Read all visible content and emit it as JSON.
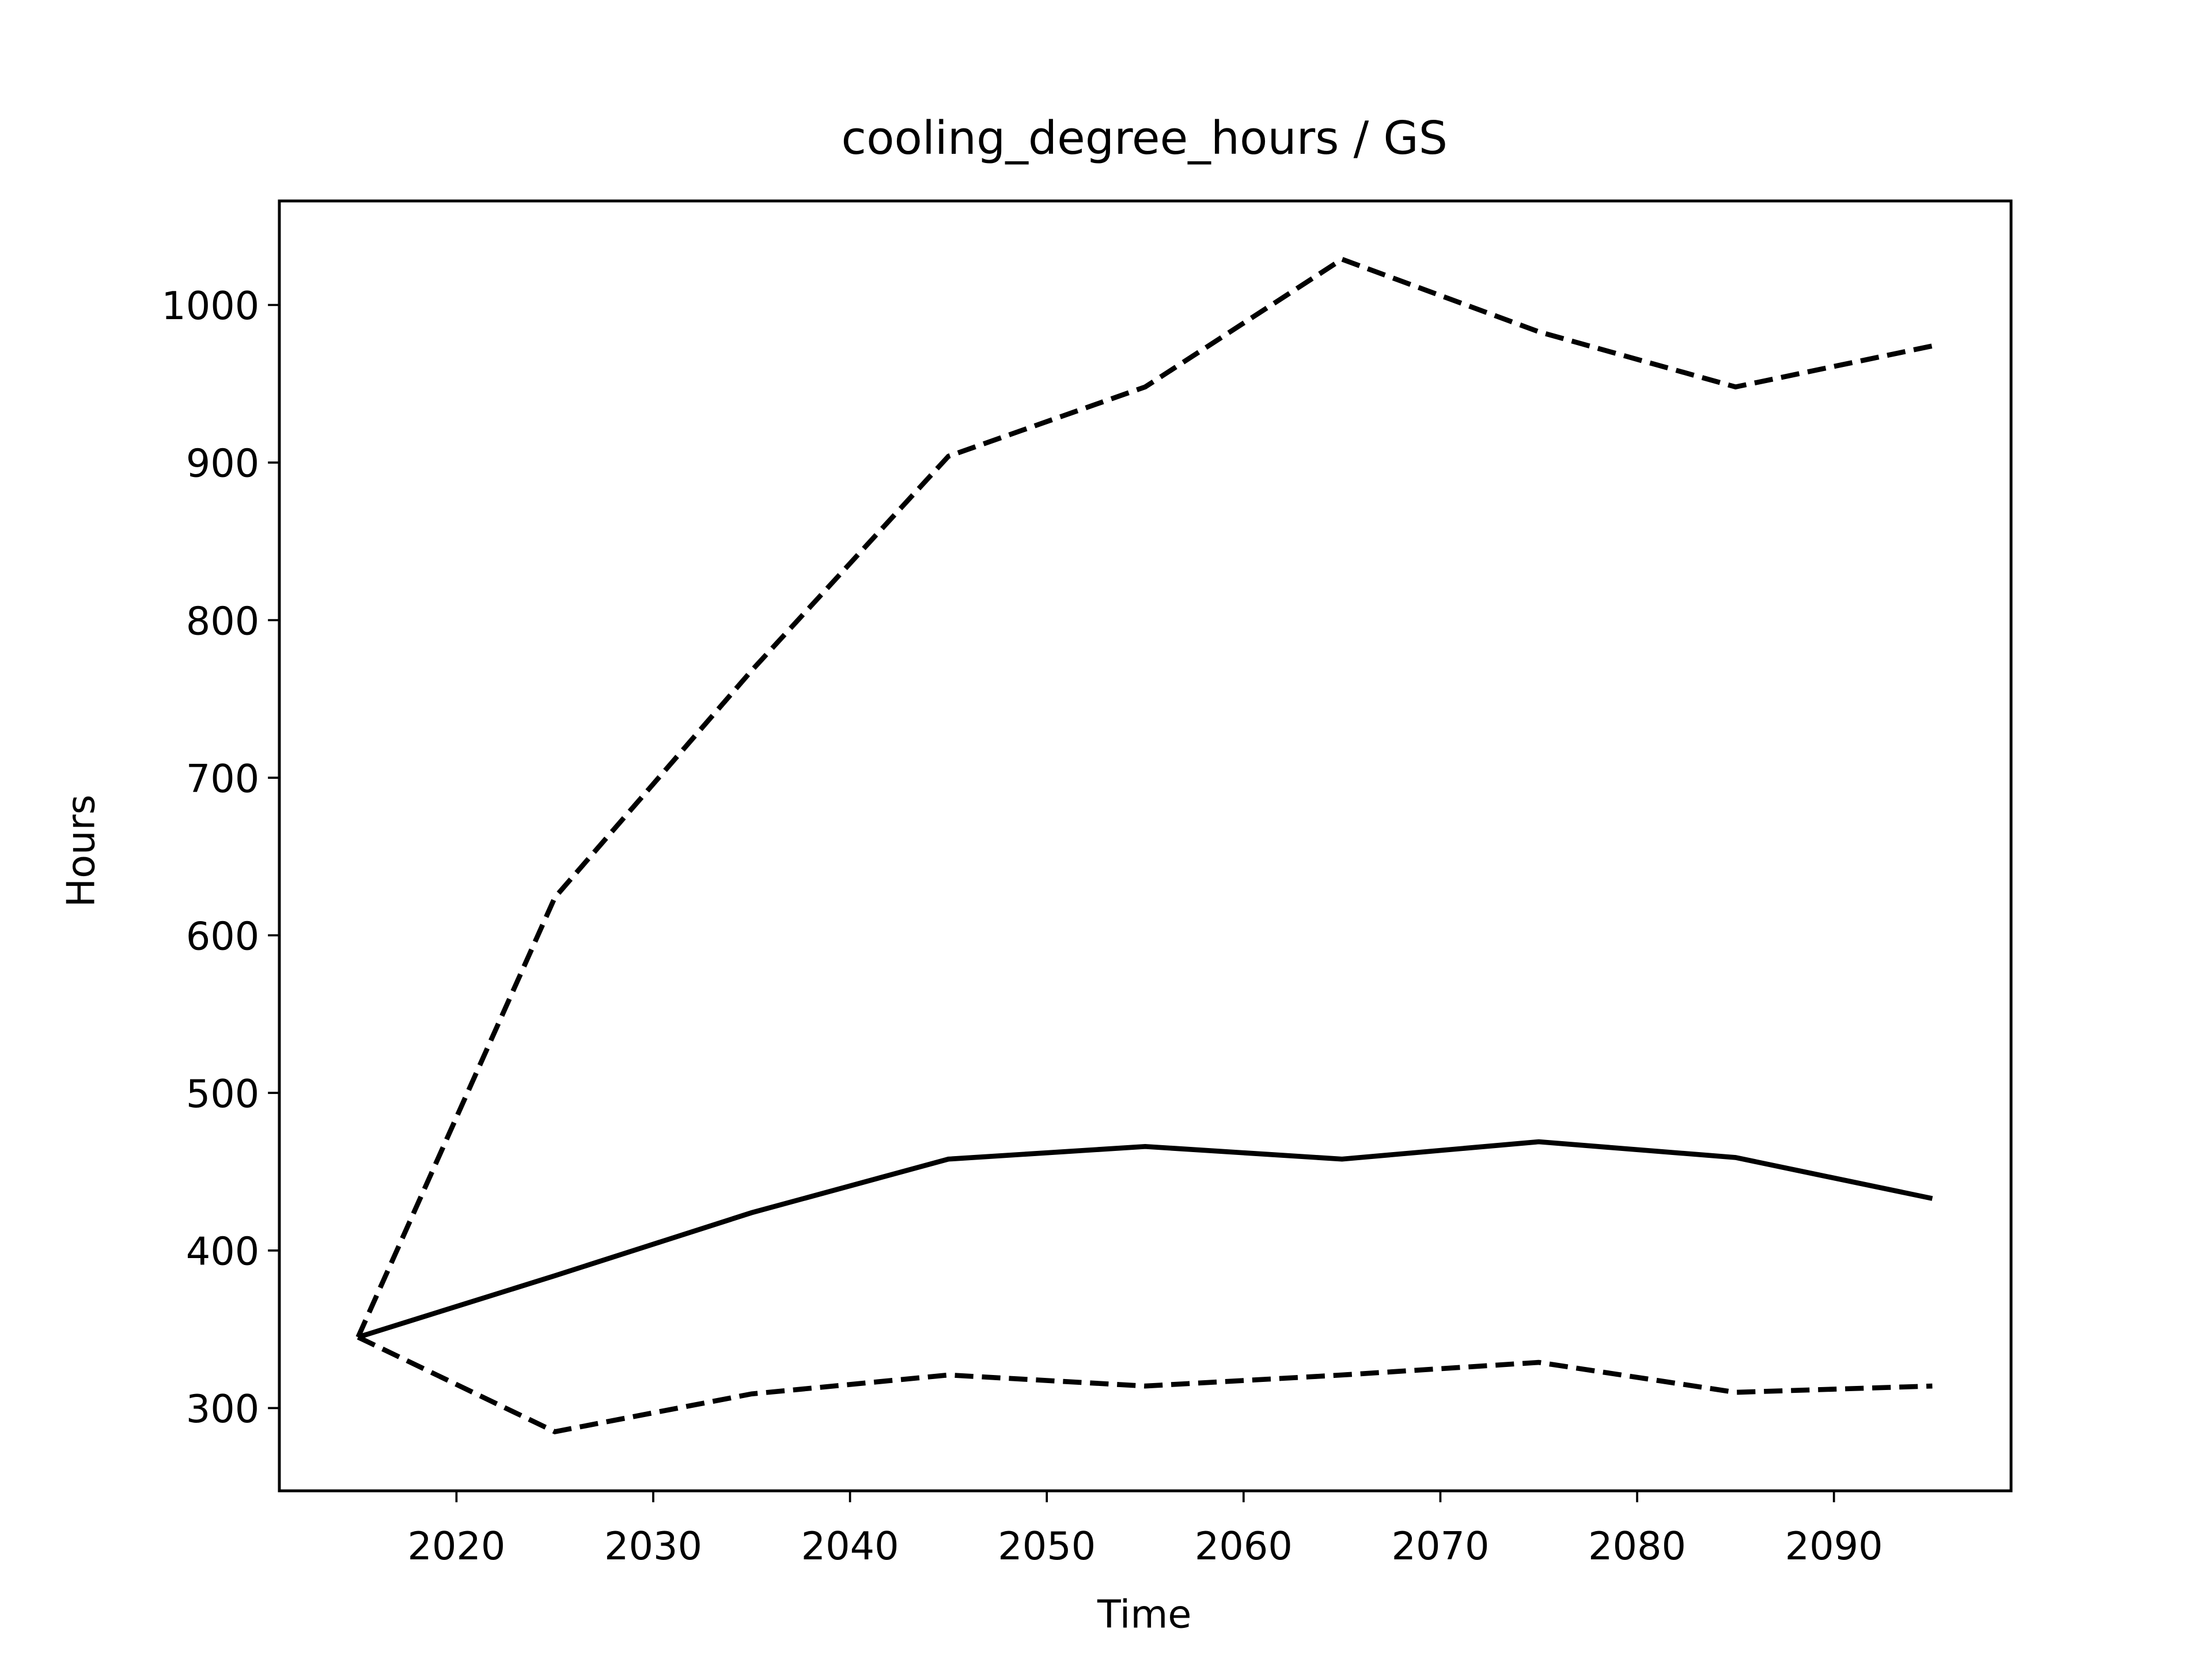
{
  "chart_data": {
    "type": "line",
    "title": "cooling_degree_hours / GS",
    "xlabel": "Time",
    "ylabel": "Hours",
    "x": [
      2015,
      2025,
      2035,
      2045,
      2055,
      2065,
      2075,
      2085,
      2095
    ],
    "series": [
      {
        "color": "#000000",
        "dashed": false,
        "values": [
          345,
          384,
          424,
          458,
          466,
          458,
          469,
          459,
          433
        ]
      },
      {
        "color": "#000000",
        "dashed": true,
        "values": [
          345,
          624,
          768,
          904,
          948,
          1029,
          983,
          948,
          974
        ]
      },
      {
        "color": "#000000",
        "dashed": true,
        "values": [
          345,
          285,
          309,
          321,
          314,
          321,
          329,
          310,
          314
        ]
      }
    ],
    "xlim": [
      2011,
      2099
    ],
    "ylim": [
      247.5,
      1066
    ],
    "xticks": [
      2020,
      2030,
      2040,
      2050,
      2060,
      2070,
      2080,
      2090
    ],
    "yticks": [
      300,
      400,
      500,
      600,
      700,
      800,
      900,
      1000
    ],
    "grid": false
  }
}
